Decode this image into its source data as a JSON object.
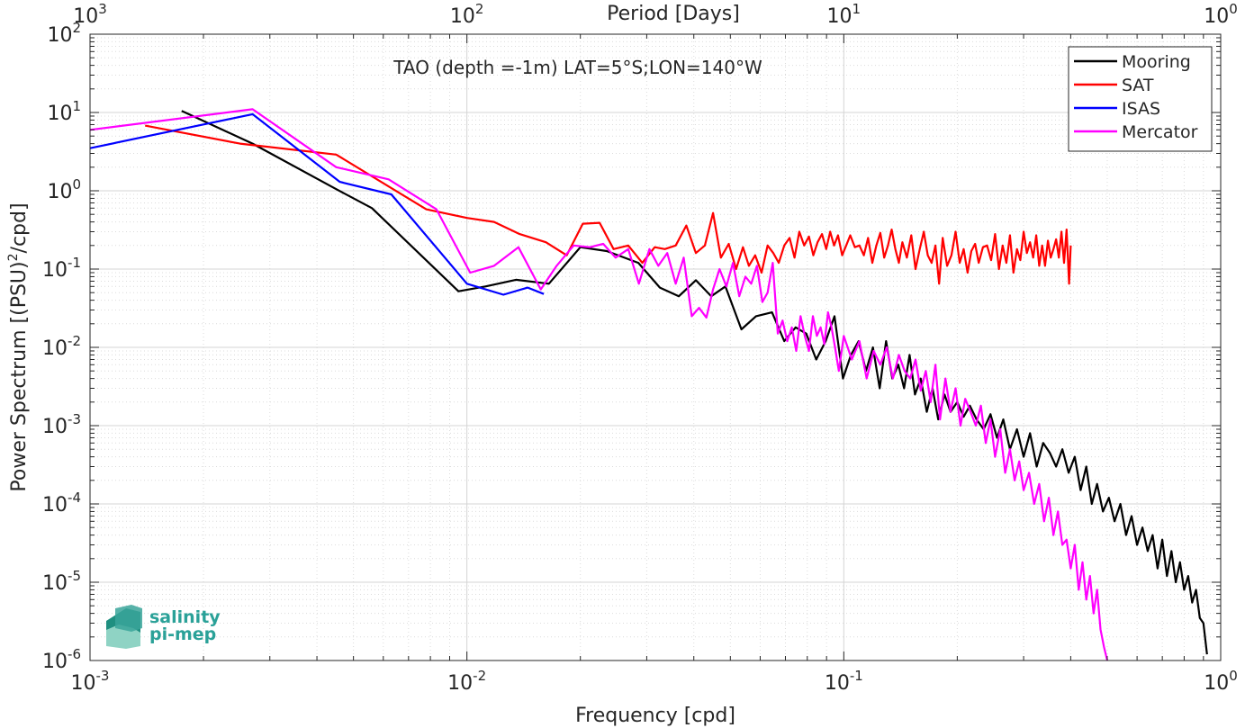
{
  "chart_data": {
    "type": "line",
    "title": "TAO (depth =-1m) LAT=5°S;LON=140°W",
    "xlabel": "Frequency [cpd]",
    "ylabel": "Power Spectrum [(PSU)²/cpd]",
    "top_axis_label": "Period [Days]",
    "x_scale": "log",
    "y_scale": "log",
    "xlim": [
      0.001,
      1
    ],
    "ylim": [
      1e-06,
      100
    ],
    "grid": true,
    "legend_position": "top-right",
    "x_ticks": [
      {
        "value": 0.001,
        "base": "10",
        "exp": "-3"
      },
      {
        "value": 0.01,
        "base": "10",
        "exp": "-2"
      },
      {
        "value": 0.1,
        "base": "10",
        "exp": "-1"
      },
      {
        "value": 1,
        "base": "10",
        "exp": "0"
      }
    ],
    "top_ticks": [
      {
        "value": 0.001,
        "base": "10",
        "exp": "3"
      },
      {
        "value": 0.01,
        "base": "10",
        "exp": "2"
      },
      {
        "value": 0.1,
        "base": "10",
        "exp": "1"
      },
      {
        "value": 1,
        "base": "10",
        "exp": "0"
      }
    ],
    "y_ticks": [
      {
        "value": 1e-06,
        "base": "10",
        "exp": "-6"
      },
      {
        "value": 1e-05,
        "base": "10",
        "exp": "-5"
      },
      {
        "value": 0.0001,
        "base": "10",
        "exp": "-4"
      },
      {
        "value": 0.001,
        "base": "10",
        "exp": "-3"
      },
      {
        "value": 0.01,
        "base": "10",
        "exp": "-2"
      },
      {
        "value": 0.1,
        "base": "10",
        "exp": "-1"
      },
      {
        "value": 1,
        "base": "10",
        "exp": "0"
      },
      {
        "value": 10,
        "base": "10",
        "exp": "1"
      },
      {
        "value": 100,
        "base": "10",
        "exp": "2"
      }
    ],
    "series": [
      {
        "name": "Mooring",
        "color": "#000000",
        "x": [
          0.00175,
          0.0027,
          0.0045,
          0.0056,
          0.0095,
          0.0112,
          0.0135,
          0.0165,
          0.02,
          0.0235,
          0.0285,
          0.0325,
          0.0365,
          0.0405,
          0.0445,
          0.0485,
          0.0535,
          0.0585,
          0.0645,
          0.0695,
          0.0745,
          0.0795,
          0.0845,
          0.0895,
          0.0945,
          0.0995,
          0.1045,
          0.1095,
          0.1145,
          0.1195,
          0.1245,
          0.1295,
          0.1345,
          0.1395,
          0.1445,
          0.1495,
          0.1545,
          0.16,
          0.166,
          0.172,
          0.178,
          0.185,
          0.192,
          0.2,
          0.208,
          0.216,
          0.225,
          0.235,
          0.245,
          0.255,
          0.265,
          0.276,
          0.288,
          0.3,
          0.312,
          0.325,
          0.338,
          0.352,
          0.366,
          0.38,
          0.395,
          0.41,
          0.425,
          0.44,
          0.455,
          0.47,
          0.487,
          0.505,
          0.523,
          0.542,
          0.561,
          0.58,
          0.6,
          0.62,
          0.64,
          0.66,
          0.68,
          0.7,
          0.72,
          0.74,
          0.76,
          0.78,
          0.8,
          0.82,
          0.84,
          0.86,
          0.88,
          0.9,
          0.92
        ],
        "y": [
          10.5,
          4.0,
          1.05,
          0.6,
          0.052,
          0.06,
          0.073,
          0.065,
          0.19,
          0.17,
          0.12,
          0.058,
          0.045,
          0.072,
          0.045,
          0.06,
          0.017,
          0.025,
          0.028,
          0.012,
          0.018,
          0.015,
          0.007,
          0.012,
          0.025,
          0.004,
          0.008,
          0.012,
          0.005,
          0.01,
          0.003,
          0.012,
          0.004,
          0.006,
          0.003,
          0.008,
          0.0025,
          0.004,
          0.0015,
          0.003,
          0.0012,
          0.0025,
          0.0015,
          0.002,
          0.0013,
          0.0018,
          0.0012,
          0.0009,
          0.0014,
          0.0007,
          0.0012,
          0.0005,
          0.0009,
          0.0004,
          0.0008,
          0.0003,
          0.0006,
          0.00045,
          0.0003,
          0.0005,
          0.00025,
          0.0004,
          0.00015,
          0.0003,
          0.0001,
          0.00018,
          8e-05,
          0.00012,
          6e-05,
          0.0001,
          4e-05,
          7e-05,
          3e-05,
          5e-05,
          2.5e-05,
          4e-05,
          1.5e-05,
          3.5e-05,
          1.2e-05,
          2.5e-05,
          1e-05,
          1.8e-05,
          8e-06,
          1.2e-05,
          5.5e-06,
          8e-06,
          3.5e-06,
          3e-06,
          1.2e-06
        ]
      },
      {
        "name": "SAT",
        "color": "#ff0000",
        "x": [
          0.0014,
          0.0025,
          0.0045,
          0.0078,
          0.01,
          0.0118,
          0.0138,
          0.0162,
          0.0184,
          0.0203,
          0.0225,
          0.0245,
          0.0268,
          0.0292,
          0.0315,
          0.0335,
          0.0358,
          0.0382,
          0.0405,
          0.0428,
          0.045,
          0.0472,
          0.0495,
          0.0518,
          0.054,
          0.056,
          0.0582,
          0.0605,
          0.0628,
          0.065,
          0.0672,
          0.0695,
          0.0718,
          0.074,
          0.0762,
          0.0785,
          0.0808,
          0.083,
          0.0852,
          0.0875,
          0.0898,
          0.092,
          0.0942,
          0.0965,
          0.099,
          0.1015,
          0.104,
          0.107,
          0.11,
          0.113,
          0.116,
          0.119,
          0.122,
          0.125,
          0.128,
          0.131,
          0.134,
          0.137,
          0.14,
          0.143,
          0.147,
          0.151,
          0.155,
          0.159,
          0.163,
          0.167,
          0.171,
          0.175,
          0.179,
          0.183,
          0.188,
          0.193,
          0.198,
          0.203,
          0.208,
          0.213,
          0.218,
          0.223,
          0.228,
          0.234,
          0.24,
          0.246,
          0.252,
          0.258,
          0.264,
          0.27,
          0.276,
          0.282,
          0.288,
          0.294,
          0.3,
          0.306,
          0.312,
          0.318,
          0.324,
          0.33,
          0.336,
          0.342,
          0.348,
          0.354,
          0.36,
          0.366,
          0.372,
          0.378,
          0.384,
          0.39,
          0.396,
          0.4
        ],
        "y": [
          6.8,
          4.0,
          2.9,
          0.58,
          0.45,
          0.4,
          0.28,
          0.22,
          0.15,
          0.38,
          0.39,
          0.18,
          0.2,
          0.12,
          0.19,
          0.18,
          0.2,
          0.36,
          0.16,
          0.2,
          0.52,
          0.14,
          0.21,
          0.1,
          0.19,
          0.11,
          0.15,
          0.09,
          0.2,
          0.16,
          0.12,
          0.2,
          0.25,
          0.14,
          0.3,
          0.2,
          0.26,
          0.15,
          0.22,
          0.28,
          0.18,
          0.3,
          0.2,
          0.27,
          0.15,
          0.2,
          0.27,
          0.19,
          0.2,
          0.15,
          0.25,
          0.12,
          0.2,
          0.29,
          0.14,
          0.2,
          0.32,
          0.18,
          0.12,
          0.22,
          0.14,
          0.27,
          0.1,
          0.18,
          0.3,
          0.15,
          0.12,
          0.2,
          0.065,
          0.25,
          0.11,
          0.15,
          0.3,
          0.12,
          0.18,
          0.09,
          0.17,
          0.21,
          0.12,
          0.19,
          0.2,
          0.13,
          0.28,
          0.1,
          0.2,
          0.12,
          0.27,
          0.09,
          0.18,
          0.13,
          0.3,
          0.16,
          0.22,
          0.14,
          0.27,
          0.11,
          0.2,
          0.11,
          0.23,
          0.14,
          0.18,
          0.24,
          0.14,
          0.3,
          0.12,
          0.32,
          0.065,
          0.2
        ]
      },
      {
        "name": "ISAS",
        "color": "#0000ff",
        "x": [
          0.001,
          0.0027,
          0.0046,
          0.0063,
          0.01,
          0.0125,
          0.0145,
          0.016
        ],
        "y": [
          3.5,
          9.5,
          1.3,
          0.9,
          0.065,
          0.047,
          0.058,
          0.048
        ]
      },
      {
        "name": "Mercator",
        "color": "#ff00ff",
        "x": [
          0.001,
          0.0027,
          0.0045,
          0.0062,
          0.0083,
          0.0102,
          0.0118,
          0.0137,
          0.0157,
          0.0173,
          0.0192,
          0.0212,
          0.023,
          0.0248,
          0.0268,
          0.0286,
          0.0305,
          0.0322,
          0.034,
          0.0358,
          0.0376,
          0.0395,
          0.0413,
          0.0432,
          0.045,
          0.0468,
          0.0488,
          0.0508,
          0.0528,
          0.0548,
          0.0568,
          0.0588,
          0.0608,
          0.0628,
          0.0648,
          0.0668,
          0.0688,
          0.0708,
          0.0728,
          0.0748,
          0.0768,
          0.0788,
          0.0808,
          0.0828,
          0.0848,
          0.0868,
          0.0888,
          0.0908,
          0.0928,
          0.0948,
          0.097,
          0.1,
          0.105,
          0.11,
          0.115,
          0.12,
          0.125,
          0.13,
          0.135,
          0.14,
          0.145,
          0.15,
          0.155,
          0.16,
          0.165,
          0.17,
          0.175,
          0.18,
          0.186,
          0.192,
          0.198,
          0.204,
          0.21,
          0.217,
          0.224,
          0.231,
          0.238,
          0.245,
          0.252,
          0.26,
          0.268,
          0.276,
          0.284,
          0.292,
          0.3,
          0.31,
          0.32,
          0.33,
          0.34,
          0.35,
          0.36,
          0.37,
          0.38,
          0.39,
          0.4,
          0.41,
          0.42,
          0.43,
          0.44,
          0.45,
          0.46,
          0.47,
          0.48,
          0.49,
          0.5
        ],
        "y": [
          6.0,
          11.0,
          2.0,
          1.4,
          0.58,
          0.09,
          0.11,
          0.19,
          0.055,
          0.11,
          0.2,
          0.19,
          0.21,
          0.14,
          0.18,
          0.065,
          0.18,
          0.11,
          0.16,
          0.065,
          0.14,
          0.025,
          0.032,
          0.024,
          0.055,
          0.1,
          0.06,
          0.12,
          0.045,
          0.08,
          0.065,
          0.11,
          0.038,
          0.05,
          0.12,
          0.015,
          0.022,
          0.012,
          0.018,
          0.009,
          0.025,
          0.014,
          0.009,
          0.025,
          0.014,
          0.018,
          0.011,
          0.028,
          0.018,
          0.01,
          0.005,
          0.014,
          0.007,
          0.012,
          0.004,
          0.009,
          0.006,
          0.01,
          0.004,
          0.008,
          0.005,
          0.004,
          0.007,
          0.0028,
          0.005,
          0.002,
          0.006,
          0.0012,
          0.004,
          0.0015,
          0.003,
          0.001,
          0.0022,
          0.0015,
          0.001,
          0.0018,
          0.0006,
          0.0012,
          0.0004,
          0.0009,
          0.00025,
          0.0005,
          0.0002,
          0.00035,
          0.00015,
          0.00025,
          0.0001,
          0.00018,
          6e-05,
          0.00012,
          4e-05,
          8e-05,
          3e-05,
          3.5e-05,
          1.5e-05,
          3e-05,
          8e-06,
          1.8e-05,
          6e-06,
          1.2e-05,
          4e-06,
          8e-06,
          2.5e-06,
          1.5e-06,
          1e-06
        ]
      }
    ]
  },
  "logo": {
    "line1": "salinity",
    "line2": "pi-mep",
    "color": "#2aa198"
  }
}
